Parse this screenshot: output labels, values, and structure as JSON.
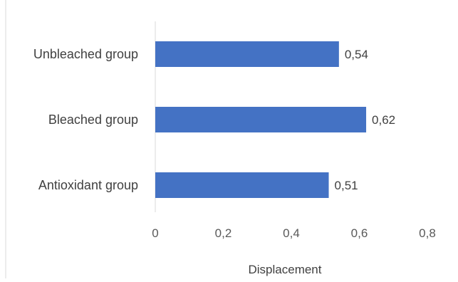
{
  "chart_data": {
    "type": "bar",
    "orientation": "horizontal",
    "title": "",
    "xlabel": "Displacement",
    "ylabel": "",
    "categories": [
      "Unbleached group",
      "Bleached group",
      "Antioxidant group"
    ],
    "values": [
      0.54,
      0.62,
      0.51
    ],
    "value_labels": [
      "0,54",
      "0,62",
      "0,51"
    ],
    "xlim": [
      0,
      0.8
    ],
    "x_ticks": [
      0,
      0.2,
      0.4,
      0.6,
      0.8
    ],
    "x_tick_labels": [
      "0",
      "0,2",
      "0,4",
      "0,6",
      "0,8"
    ],
    "grid": false,
    "legend": "none",
    "colors": {
      "bar": "#4472c4",
      "axis": "#d9d9d9",
      "text": "#404040"
    }
  }
}
